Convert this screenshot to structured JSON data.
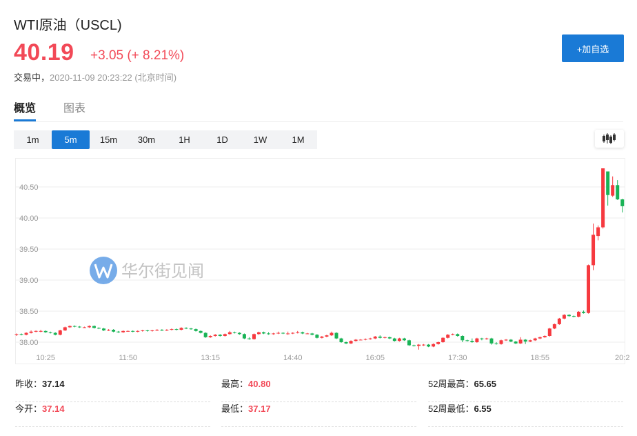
{
  "header": {
    "title": "WTI原油（USCL)",
    "price": "40.19",
    "change": "+3.05 (+ 8.21%)",
    "status": "交易中，",
    "timestamp": "2020-11-09 20:23:22 (北京时间)",
    "watch_button": "+加自选"
  },
  "tabs": [
    {
      "label": "概览",
      "active": true
    },
    {
      "label": "图表",
      "active": false
    }
  ],
  "periods": [
    {
      "label": "1m"
    },
    {
      "label": "5m",
      "active": true
    },
    {
      "label": "15m"
    },
    {
      "label": "30m"
    },
    {
      "label": "1H"
    },
    {
      "label": "1D"
    },
    {
      "label": "1W"
    },
    {
      "label": "1M"
    }
  ],
  "chart_type_icon": "candlestick-icon",
  "watermark": "华尔街见闻",
  "colors": {
    "up": "#f6393f",
    "down": "#19b356",
    "accent": "#1a7ad6",
    "price": "#f24957"
  },
  "chart_data": {
    "type": "candlestick",
    "interval": "5m",
    "ylim": [
      37.85,
      40.95
    ],
    "y_ticks": [
      "38.00",
      "38.50",
      "39.00",
      "39.50",
      "40.00",
      "40.50"
    ],
    "x_ticks": [
      "10:25",
      "11:50",
      "13:15",
      "14:40",
      "16:05",
      "17:30",
      "18:55",
      "20:2"
    ],
    "grid": true,
    "candle_fields": [
      "open",
      "high",
      "low",
      "close"
    ],
    "candles": [
      [
        38.12,
        38.14,
        38.1,
        38.13
      ],
      [
        38.13,
        38.14,
        38.11,
        38.12
      ],
      [
        38.12,
        38.16,
        38.11,
        38.15
      ],
      [
        38.15,
        38.19,
        38.14,
        38.17
      ],
      [
        38.17,
        38.19,
        38.16,
        38.18
      ],
      [
        38.18,
        38.2,
        38.16,
        38.18
      ],
      [
        38.18,
        38.19,
        38.15,
        38.16
      ],
      [
        38.16,
        38.17,
        38.14,
        38.15
      ],
      [
        38.15,
        38.16,
        38.11,
        38.12
      ],
      [
        38.12,
        38.2,
        38.11,
        38.19
      ],
      [
        38.19,
        38.25,
        38.18,
        38.24
      ],
      [
        38.24,
        38.27,
        38.23,
        38.26
      ],
      [
        38.26,
        38.27,
        38.24,
        38.25
      ],
      [
        38.25,
        38.26,
        38.23,
        38.24
      ],
      [
        38.24,
        38.25,
        38.23,
        38.24
      ],
      [
        38.24,
        38.27,
        38.23,
        38.26
      ],
      [
        38.26,
        38.27,
        38.22,
        38.23
      ],
      [
        38.23,
        38.24,
        38.21,
        38.22
      ],
      [
        38.22,
        38.23,
        38.18,
        38.19
      ],
      [
        38.19,
        38.21,
        38.18,
        38.2
      ],
      [
        38.2,
        38.21,
        38.16,
        38.17
      ],
      [
        38.17,
        38.18,
        38.15,
        38.16
      ],
      [
        38.16,
        38.19,
        38.15,
        38.18
      ],
      [
        38.18,
        38.19,
        38.17,
        38.18
      ],
      [
        38.18,
        38.19,
        38.16,
        38.17
      ],
      [
        38.17,
        38.19,
        38.16,
        38.18
      ],
      [
        38.18,
        38.2,
        38.17,
        38.19
      ],
      [
        38.19,
        38.2,
        38.17,
        38.18
      ],
      [
        38.18,
        38.2,
        38.17,
        38.19
      ],
      [
        38.19,
        38.21,
        38.18,
        38.2
      ],
      [
        38.2,
        38.21,
        38.18,
        38.19
      ],
      [
        38.19,
        38.21,
        38.18,
        38.2
      ],
      [
        38.2,
        38.22,
        38.19,
        38.21
      ],
      [
        38.21,
        38.22,
        38.19,
        38.2
      ],
      [
        38.2,
        38.24,
        38.19,
        38.23
      ],
      [
        38.23,
        38.24,
        38.21,
        38.22
      ],
      [
        38.22,
        38.23,
        38.2,
        38.21
      ],
      [
        38.21,
        38.22,
        38.17,
        38.18
      ],
      [
        38.18,
        38.19,
        38.14,
        38.15
      ],
      [
        38.15,
        38.16,
        38.07,
        38.08
      ],
      [
        38.08,
        38.11,
        38.07,
        38.1
      ],
      [
        38.1,
        38.13,
        38.09,
        38.12
      ],
      [
        38.12,
        38.13,
        38.09,
        38.1
      ],
      [
        38.1,
        38.14,
        38.09,
        38.13
      ],
      [
        38.13,
        38.18,
        38.12,
        38.16
      ],
      [
        38.16,
        38.17,
        38.14,
        38.15
      ],
      [
        38.15,
        38.16,
        38.12,
        38.13
      ],
      [
        38.13,
        38.14,
        38.05,
        38.06
      ],
      [
        38.06,
        38.08,
        38.04,
        38.05
      ],
      [
        38.05,
        38.14,
        38.04,
        38.13
      ],
      [
        38.13,
        38.17,
        38.12,
        38.16
      ],
      [
        38.16,
        38.17,
        38.13,
        38.14
      ],
      [
        38.14,
        38.16,
        38.12,
        38.13
      ],
      [
        38.13,
        38.15,
        38.12,
        38.14
      ],
      [
        38.14,
        38.17,
        38.13,
        38.15
      ],
      [
        38.15,
        38.16,
        38.13,
        38.14
      ],
      [
        38.14,
        38.17,
        38.12,
        38.14
      ],
      [
        38.14,
        38.16,
        38.13,
        38.15
      ],
      [
        38.15,
        38.18,
        38.14,
        38.16
      ],
      [
        38.16,
        38.17,
        38.13,
        38.14
      ],
      [
        38.14,
        38.15,
        38.13,
        38.14
      ],
      [
        38.14,
        38.15,
        38.11,
        38.12
      ],
      [
        38.12,
        38.13,
        38.06,
        38.07
      ],
      [
        38.07,
        38.1,
        38.06,
        38.09
      ],
      [
        38.09,
        38.12,
        38.08,
        38.11
      ],
      [
        38.11,
        38.17,
        38.1,
        38.15
      ],
      [
        38.15,
        38.16,
        38.05,
        38.06
      ],
      [
        38.06,
        38.07,
        37.99,
        38.0
      ],
      [
        38.0,
        38.01,
        37.97,
        37.98
      ],
      [
        37.98,
        38.03,
        37.97,
        38.02
      ],
      [
        38.02,
        38.05,
        38.01,
        38.04
      ],
      [
        38.04,
        38.05,
        38.03,
        38.04
      ],
      [
        38.04,
        38.06,
        38.03,
        38.05
      ],
      [
        38.05,
        38.07,
        38.04,
        38.06
      ],
      [
        38.06,
        38.1,
        38.05,
        38.09
      ],
      [
        38.09,
        38.11,
        38.06,
        38.07
      ],
      [
        38.07,
        38.09,
        38.06,
        38.08
      ],
      [
        38.08,
        38.09,
        38.05,
        38.06
      ],
      [
        38.06,
        38.07,
        38.01,
        38.02
      ],
      [
        38.02,
        38.07,
        38.01,
        38.06
      ],
      [
        38.06,
        38.07,
        38.02,
        38.03
      ],
      [
        38.03,
        38.04,
        37.94,
        37.95
      ],
      [
        37.95,
        37.96,
        37.93,
        37.94
      ],
      [
        37.94,
        37.97,
        37.88,
        37.96
      ],
      [
        37.96,
        37.97,
        37.94,
        37.96
      ],
      [
        37.96,
        37.97,
        37.92,
        37.93
      ],
      [
        37.93,
        37.98,
        37.92,
        37.97
      ],
      [
        37.97,
        38.01,
        37.96,
        38.0
      ],
      [
        38.0,
        38.08,
        37.99,
        38.07
      ],
      [
        38.07,
        38.13,
        38.06,
        38.12
      ],
      [
        38.12,
        38.14,
        38.11,
        38.13
      ],
      [
        38.13,
        38.14,
        38.09,
        38.1
      ],
      [
        38.1,
        38.11,
        38.0,
        38.03
      ],
      [
        38.03,
        38.04,
        38.01,
        38.02
      ],
      [
        38.02,
        38.06,
        37.99,
        38.0
      ],
      [
        38.0,
        38.07,
        37.99,
        38.06
      ],
      [
        38.06,
        38.07,
        38.03,
        38.05
      ],
      [
        38.05,
        38.07,
        38.04,
        38.06
      ],
      [
        38.06,
        38.07,
        37.96,
        37.98
      ],
      [
        37.98,
        38.0,
        37.96,
        37.97
      ],
      [
        37.97,
        38.04,
        37.96,
        38.03
      ],
      [
        38.03,
        38.05,
        38.02,
        38.04
      ],
      [
        38.04,
        38.05,
        38.0,
        38.01
      ],
      [
        38.01,
        38.02,
        37.97,
        37.98
      ],
      [
        37.98,
        38.08,
        37.97,
        38.04
      ],
      [
        38.04,
        38.05,
        37.97,
        38.01
      ],
      [
        38.01,
        38.04,
        38.0,
        38.03
      ],
      [
        38.03,
        38.07,
        38.02,
        38.06
      ],
      [
        38.06,
        38.09,
        38.05,
        38.08
      ],
      [
        38.08,
        38.11,
        38.07,
        38.1
      ],
      [
        38.1,
        38.23,
        38.09,
        38.22
      ],
      [
        38.22,
        38.3,
        38.21,
        38.29
      ],
      [
        38.29,
        38.39,
        38.28,
        38.38
      ],
      [
        38.38,
        38.45,
        38.37,
        38.44
      ],
      [
        38.44,
        38.45,
        38.41,
        38.42
      ],
      [
        38.42,
        38.43,
        38.4,
        38.41
      ],
      [
        38.41,
        38.5,
        38.4,
        38.49
      ],
      [
        38.49,
        38.51,
        38.46,
        38.47
      ],
      [
        38.47,
        39.25,
        38.46,
        39.24
      ],
      [
        39.24,
        39.91,
        39.16,
        39.73
      ],
      [
        39.71,
        39.88,
        39.64,
        39.85
      ],
      [
        39.85,
        40.8,
        39.83,
        40.8
      ],
      [
        40.75,
        40.75,
        40.2,
        40.37
      ],
      [
        40.36,
        40.67,
        40.34,
        40.53
      ],
      [
        40.53,
        40.61,
        40.29,
        40.3
      ],
      [
        40.3,
        40.31,
        40.09,
        40.19
      ]
    ]
  },
  "stats": [
    {
      "label": "昨收：",
      "value": "37.14",
      "red": false
    },
    {
      "label": "最高：",
      "value": "40.80",
      "red": true
    },
    {
      "label": "52周最高：",
      "value": "65.65",
      "red": false
    },
    {
      "label": "今开：",
      "value": "37.14",
      "red": true
    },
    {
      "label": "最低：",
      "value": "37.17",
      "red": true
    },
    {
      "label": "52周最低：",
      "value": "6.55",
      "red": false
    }
  ]
}
